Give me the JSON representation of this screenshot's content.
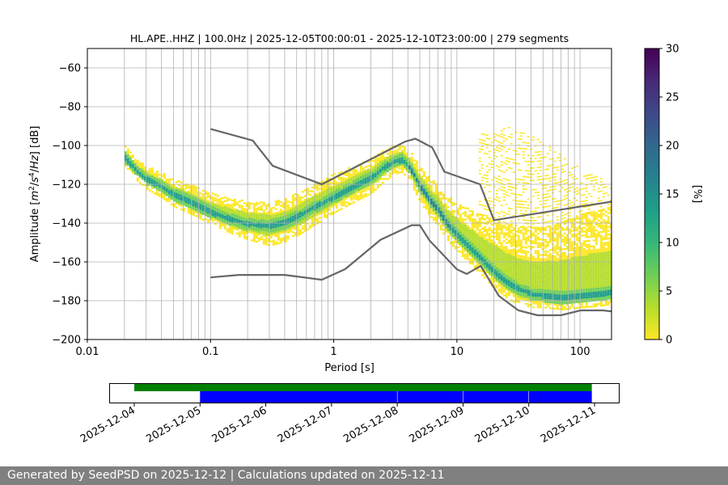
{
  "chart_data": [
    {
      "type": "heatmap",
      "title": "HL.APE..HHZ | 100.0Hz | 2025-12-05T00:00:01 - 2025-12-10T23:00:00 | 279 segments",
      "xlabel": "Period [s]",
      "ylabel_parts": [
        "Amplitude [",
        "m",
        "2",
        "/",
        "s",
        "4",
        "/",
        "Hz",
        "] [dB]"
      ],
      "xscale": "log",
      "xlim": [
        0.01,
        180
      ],
      "ylim": [
        -200,
        -50
      ],
      "grid": true,
      "xticks": [
        {
          "value": 0.01,
          "label": "0.01"
        },
        {
          "value": 0.1,
          "label": "0.1"
        },
        {
          "value": 1,
          "label": "1"
        },
        {
          "value": 10,
          "label": "10"
        },
        {
          "value": 100,
          "label": "100"
        }
      ],
      "yticks": [
        {
          "value": -60,
          "label": "−60"
        },
        {
          "value": -80,
          "label": "−80"
        },
        {
          "value": -100,
          "label": "−100"
        },
        {
          "value": -120,
          "label": "−120"
        },
        {
          "value": -140,
          "label": "−140"
        },
        {
          "value": -160,
          "label": "−160"
        },
        {
          "value": -180,
          "label": "−180"
        },
        {
          "value": -200,
          "label": "−200"
        }
      ],
      "grid_minor_start": 0.02,
      "grid_minor_end": 150,
      "colorbar": {
        "label": "[%]",
        "range": [
          0,
          30
        ],
        "ticks": [
          {
            "value": 0,
            "label": "0"
          },
          {
            "value": 5,
            "label": "5"
          },
          {
            "value": 10,
            "label": "10"
          },
          {
            "value": 15,
            "label": "15"
          },
          {
            "value": 20,
            "label": "20"
          },
          {
            "value": 25,
            "label": "25"
          },
          {
            "value": 30,
            "label": "30"
          }
        ],
        "colormap": [
          "#fde725",
          "#b5de2b",
          "#6ece58",
          "#35b779",
          "#1f9e89",
          "#26828e",
          "#31688e",
          "#3e4989",
          "#482878",
          "#440154"
        ]
      },
      "ppsd_mode": [
        [
          0.02,
          -107
        ],
        [
          0.025,
          -114
        ],
        [
          0.03,
          -118
        ],
        [
          0.04,
          -122
        ],
        [
          0.05,
          -126
        ],
        [
          0.07,
          -130
        ],
        [
          0.1,
          -135
        ],
        [
          0.15,
          -139
        ],
        [
          0.2,
          -141
        ],
        [
          0.3,
          -142
        ],
        [
          0.4,
          -140
        ],
        [
          0.5,
          -137
        ],
        [
          0.7,
          -132
        ],
        [
          1.0,
          -127
        ],
        [
          1.5,
          -121
        ],
        [
          2.0,
          -117
        ],
        [
          2.5,
          -112
        ],
        [
          3.0,
          -109
        ],
        [
          3.5,
          -108
        ],
        [
          4.0,
          -111
        ],
        [
          5.0,
          -122
        ],
        [
          6.0,
          -129
        ],
        [
          7.0,
          -134
        ],
        [
          8.0,
          -140
        ],
        [
          10,
          -147
        ],
        [
          12,
          -152
        ],
        [
          15,
          -158
        ],
        [
          20,
          -166
        ],
        [
          25,
          -171
        ],
        [
          30,
          -174
        ],
        [
          40,
          -177
        ],
        [
          50,
          -178
        ],
        [
          70,
          -179
        ],
        [
          100,
          -178
        ],
        [
          150,
          -177
        ],
        [
          180,
          -176
        ]
      ],
      "ppsd_spread": [
        [
          0.02,
          6,
          4
        ],
        [
          0.05,
          8,
          6
        ],
        [
          0.1,
          10,
          6
        ],
        [
          0.2,
          12,
          8
        ],
        [
          0.3,
          12,
          10
        ],
        [
          0.5,
          12,
          10
        ],
        [
          1.0,
          12,
          8
        ],
        [
          2.0,
          10,
          8
        ],
        [
          3.5,
          8,
          6
        ],
        [
          5.0,
          10,
          8
        ],
        [
          8.0,
          14,
          8
        ],
        [
          15,
          22,
          8
        ],
        [
          20,
          28,
          8
        ],
        [
          30,
          32,
          8
        ],
        [
          50,
          36,
          6
        ],
        [
          100,
          42,
          6
        ],
        [
          180,
          44,
          6
        ]
      ],
      "ppsd_upper_scatter": [
        [
          15,
          -95
        ],
        [
          20,
          -93
        ],
        [
          25,
          -91
        ],
        [
          30,
          -93
        ],
        [
          40,
          -96
        ],
        [
          50,
          -99
        ],
        [
          70,
          -105
        ],
        [
          100,
          -112
        ],
        [
          150,
          -118
        ],
        [
          180,
          -122
        ]
      ],
      "series": [
        {
          "role": "noise-model-high",
          "color": "#666666",
          "points": [
            [
              0.1,
              -91.5
            ],
            [
              0.22,
              -97.4
            ],
            [
              0.32,
              -110.5
            ],
            [
              0.8,
              -120
            ],
            [
              3.8,
              -98
            ],
            [
              4.6,
              -96.5
            ],
            [
              6.3,
              -101
            ],
            [
              7.9,
              -113.5
            ],
            [
              15.4,
              -120
            ],
            [
              20,
              -138.5
            ],
            [
              354,
              -126
            ]
          ]
        },
        {
          "role": "noise-model-low",
          "color": "#666666",
          "points": [
            [
              0.1,
              -168
            ],
            [
              0.17,
              -166.7
            ],
            [
              0.4,
              -166.7
            ],
            [
              0.8,
              -169.2
            ],
            [
              1.24,
              -163.7
            ],
            [
              2.4,
              -148.6
            ],
            [
              4.3,
              -141.1
            ],
            [
              5.0,
              -141.1
            ],
            [
              6.0,
              -149
            ],
            [
              10,
              -163.8
            ],
            [
              12,
              -166.2
            ],
            [
              15.6,
              -162.1
            ],
            [
              21.9,
              -177.5
            ],
            [
              31.6,
              -185
            ],
            [
              45,
              -187.5
            ],
            [
              70,
              -187.5
            ],
            [
              101,
              -185
            ],
            [
              154,
              -185
            ],
            [
              328,
              -187.5
            ]
          ]
        }
      ]
    },
    {
      "type": "timeline",
      "xlim": [
        "2025-12-03T15:00",
        "2025-12-11T09:00"
      ],
      "xticks": [
        "2025-12-04",
        "2025-12-05",
        "2025-12-06",
        "2025-12-07",
        "2025-12-08",
        "2025-12-09",
        "2025-12-10",
        "2025-12-11"
      ],
      "data_bar": {
        "color": "#008000",
        "start": "2025-12-04T00:00",
        "end": "2025-12-10T23:00"
      },
      "ppsd_segments": {
        "color": "#0000ff",
        "ranges": [
          [
            "2025-12-05T00:00",
            "2025-12-07T23:55"
          ],
          [
            "2025-12-08T00:05",
            "2025-12-08T23:55"
          ],
          [
            "2025-12-09T00:05",
            "2025-12-09T23:55"
          ],
          [
            "2025-12-10T00:05",
            "2025-12-10T23:00"
          ]
        ]
      }
    }
  ],
  "footer": {
    "text": "Generated by SeedPSD on 2025-12-12 | Calculations updated on 2025-12-11"
  }
}
